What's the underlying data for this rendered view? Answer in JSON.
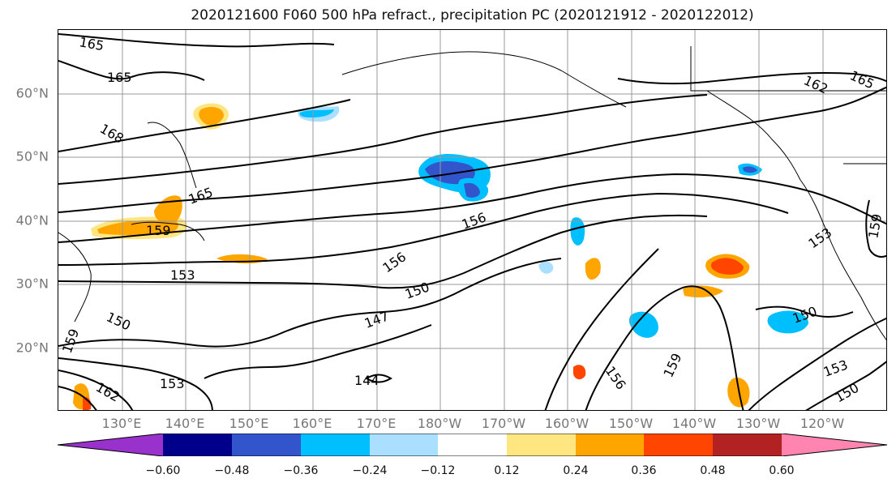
{
  "title": "2020121600 F060 500 hPa refract., precipitation PC (2020121912 - 2020122012)",
  "lat_labels": [
    "60°N",
    "50°N",
    "40°N",
    "30°N",
    "20°N"
  ],
  "lon_labels": [
    "130°E",
    "140°E",
    "150°E",
    "160°E",
    "170°E",
    "180°W",
    "170°W",
    "160°W",
    "150°W",
    "140°W",
    "130°W",
    "120°W"
  ],
  "contour_labels": [
    "165",
    "165",
    "168",
    "165",
    "159",
    "153",
    "156",
    "156",
    "150",
    "147",
    "150",
    "144",
    "153",
    "162",
    "159",
    "156",
    "159",
    "153",
    "150",
    "153",
    "150",
    "162",
    "165",
    "159"
  ],
  "colorbar": {
    "ticks": [
      "−0.60",
      "−0.48",
      "−0.36",
      "−0.24",
      "−0.12",
      "0.12",
      "0.24",
      "0.36",
      "0.48",
      "0.60"
    ],
    "colors": [
      "#9932cc",
      "#00008b",
      "#3355cc",
      "#00bfff",
      "#aadfff",
      "#ffffff",
      "#ffe680",
      "#ffa500",
      "#ff4500",
      "#b22222",
      "#ff85b0"
    ]
  }
}
